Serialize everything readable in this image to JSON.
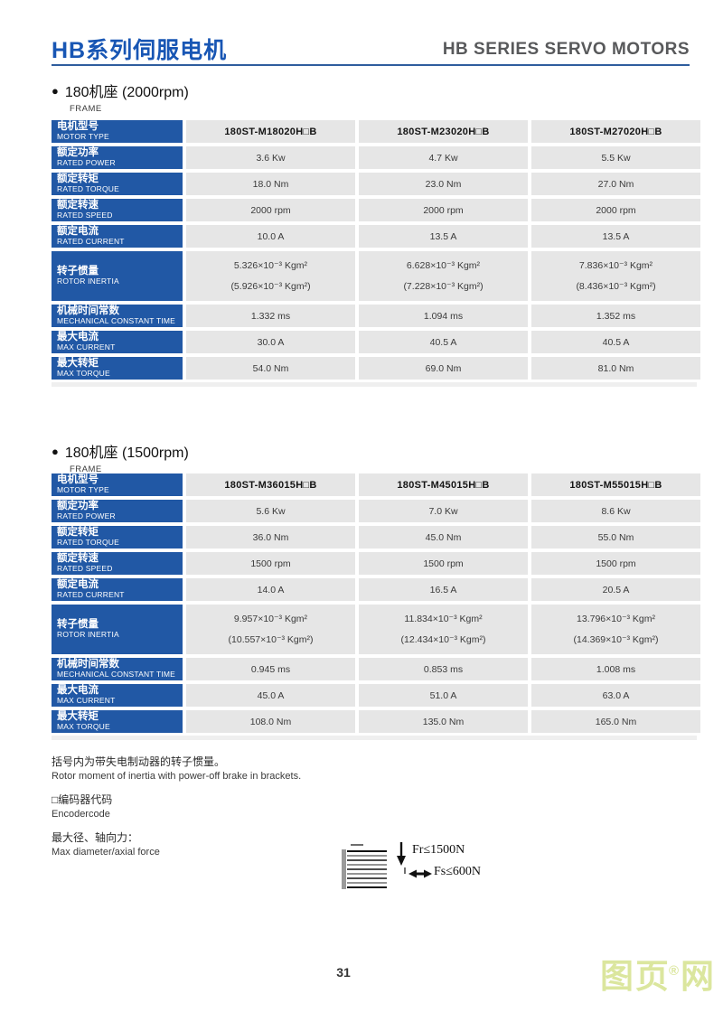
{
  "header": {
    "title_zh": "HB系列伺服电机",
    "title_en": "HB SERIES SERVO MOTORS"
  },
  "colors": {
    "accent_blue": "#1856b4",
    "table_label_blue": "#2158a5",
    "table_cell_gray": "#e6e6e6",
    "header_rule_blue": "#2e5d9e",
    "watermark_green": "#dbe69e"
  },
  "sections": [
    {
      "heading": "180机座 (2000rpm)",
      "subheading": "FRAME",
      "bullet": "●",
      "table": {
        "rows": [
          {
            "header": true,
            "label_zh": "电机型号",
            "label_en": "MOTOR TYPE",
            "values": [
              "180ST-M18020H□B",
              "180ST-M23020H□B",
              "180ST-M27020H□B"
            ]
          },
          {
            "label_zh": "额定功率",
            "label_en": "RATED POWER",
            "values": [
              "3.6 Kw",
              "4.7 Kw",
              "5.5 Kw"
            ]
          },
          {
            "label_zh": "额定转矩",
            "label_en": "RATED TORQUE",
            "values": [
              "18.0 Nm",
              "23.0 Nm",
              "27.0 Nm"
            ]
          },
          {
            "label_zh": "额定转速",
            "label_en": "RATED SPEED",
            "values": [
              "2000 rpm",
              "2000 rpm",
              "2000 rpm"
            ]
          },
          {
            "label_zh": "额定电流",
            "label_en": "RATED CURRENT",
            "values": [
              "10.0 A",
              "13.5 A",
              "13.5 A"
            ]
          },
          {
            "tall": true,
            "label_zh": "转子惯量",
            "label_en": "ROTOR INERTIA",
            "values": [
              "5.326×10⁻³ Kgm²",
              "6.628×10⁻³ Kgm²",
              "7.836×10⁻³ Kgm²"
            ],
            "values2": [
              "(5.926×10⁻³ Kgm²)",
              "(7.228×10⁻³ Kgm²)",
              "(8.436×10⁻³ Kgm²)"
            ]
          },
          {
            "label_zh": "机械时间常数",
            "label_en": "MECHANICAL CONSTANT TIME",
            "values": [
              "1.332 ms",
              "1.094 ms",
              "1.352 ms"
            ]
          },
          {
            "label_zh": "最大电流",
            "label_en": "MAX CURRENT",
            "values": [
              "30.0 A",
              "40.5 A",
              "40.5 A"
            ]
          },
          {
            "label_zh": "最大转矩",
            "label_en": "MAX TORQUE",
            "values": [
              "54.0 Nm",
              "69.0 Nm",
              "81.0 Nm"
            ]
          }
        ]
      }
    },
    {
      "heading": "180机座 (1500rpm)",
      "subheading": "FRAME",
      "bullet": "●",
      "table": {
        "rows": [
          {
            "header": true,
            "label_zh": "电机型号",
            "label_en": "MOTOR TYPE",
            "values": [
              "180ST-M36015H□B",
              "180ST-M45015H□B",
              "180ST-M55015H□B"
            ]
          },
          {
            "label_zh": "额定功率",
            "label_en": "RATED POWER",
            "values": [
              "5.6 Kw",
              "7.0 Kw",
              "8.6 Kw"
            ]
          },
          {
            "label_zh": "额定转矩",
            "label_en": "RATED TORQUE",
            "values": [
              "36.0 Nm",
              "45.0 Nm",
              "55.0 Nm"
            ]
          },
          {
            "label_zh": "额定转速",
            "label_en": "RATED SPEED",
            "values": [
              "1500 rpm",
              "1500 rpm",
              "1500 rpm"
            ]
          },
          {
            "label_zh": "额定电流",
            "label_en": "RATED CURRENT",
            "values": [
              "14.0 A",
              "16.5 A",
              "20.5 A"
            ]
          },
          {
            "tall": true,
            "label_zh": "转子惯量",
            "label_en": "ROTOR INERTIA",
            "values": [
              "9.957×10⁻³ Kgm²",
              "11.834×10⁻³ Kgm²",
              "13.796×10⁻³ Kgm²"
            ],
            "values2": [
              "(10.557×10⁻³ Kgm²)",
              "(12.434×10⁻³ Kgm²)",
              "(14.369×10⁻³ Kgm²)"
            ]
          },
          {
            "label_zh": "机械时间常数",
            "label_en": "MECHANICAL CONSTANT TIME",
            "values": [
              "0.945 ms",
              "0.853 ms",
              "1.008 ms"
            ]
          },
          {
            "label_zh": "最大电流",
            "label_en": "MAX CURRENT",
            "values": [
              "45.0 A",
              "51.0 A",
              "63.0 A"
            ]
          },
          {
            "label_zh": "最大转矩",
            "label_en": "MAX TORQUE",
            "values": [
              "108.0 Nm",
              "135.0 Nm",
              "165.0 Nm"
            ]
          }
        ]
      }
    }
  ],
  "notes": [
    {
      "zh": "括号内为带失电制动器的转子惯量。",
      "en": "Rotor moment of inertia with power-off brake in brackets."
    },
    {
      "zh": "□编码器代码",
      "en": "Encodercode"
    },
    {
      "zh": "最大径、轴向力：",
      "en": "Max diameter/axial force"
    }
  ],
  "diagram": {
    "fr_label": "Fr≤1500N",
    "fs_label": "Fs≤600N"
  },
  "footer": {
    "page_number": "31"
  },
  "watermark": {
    "main": "图页",
    "reg": "®",
    "tail": "网"
  }
}
